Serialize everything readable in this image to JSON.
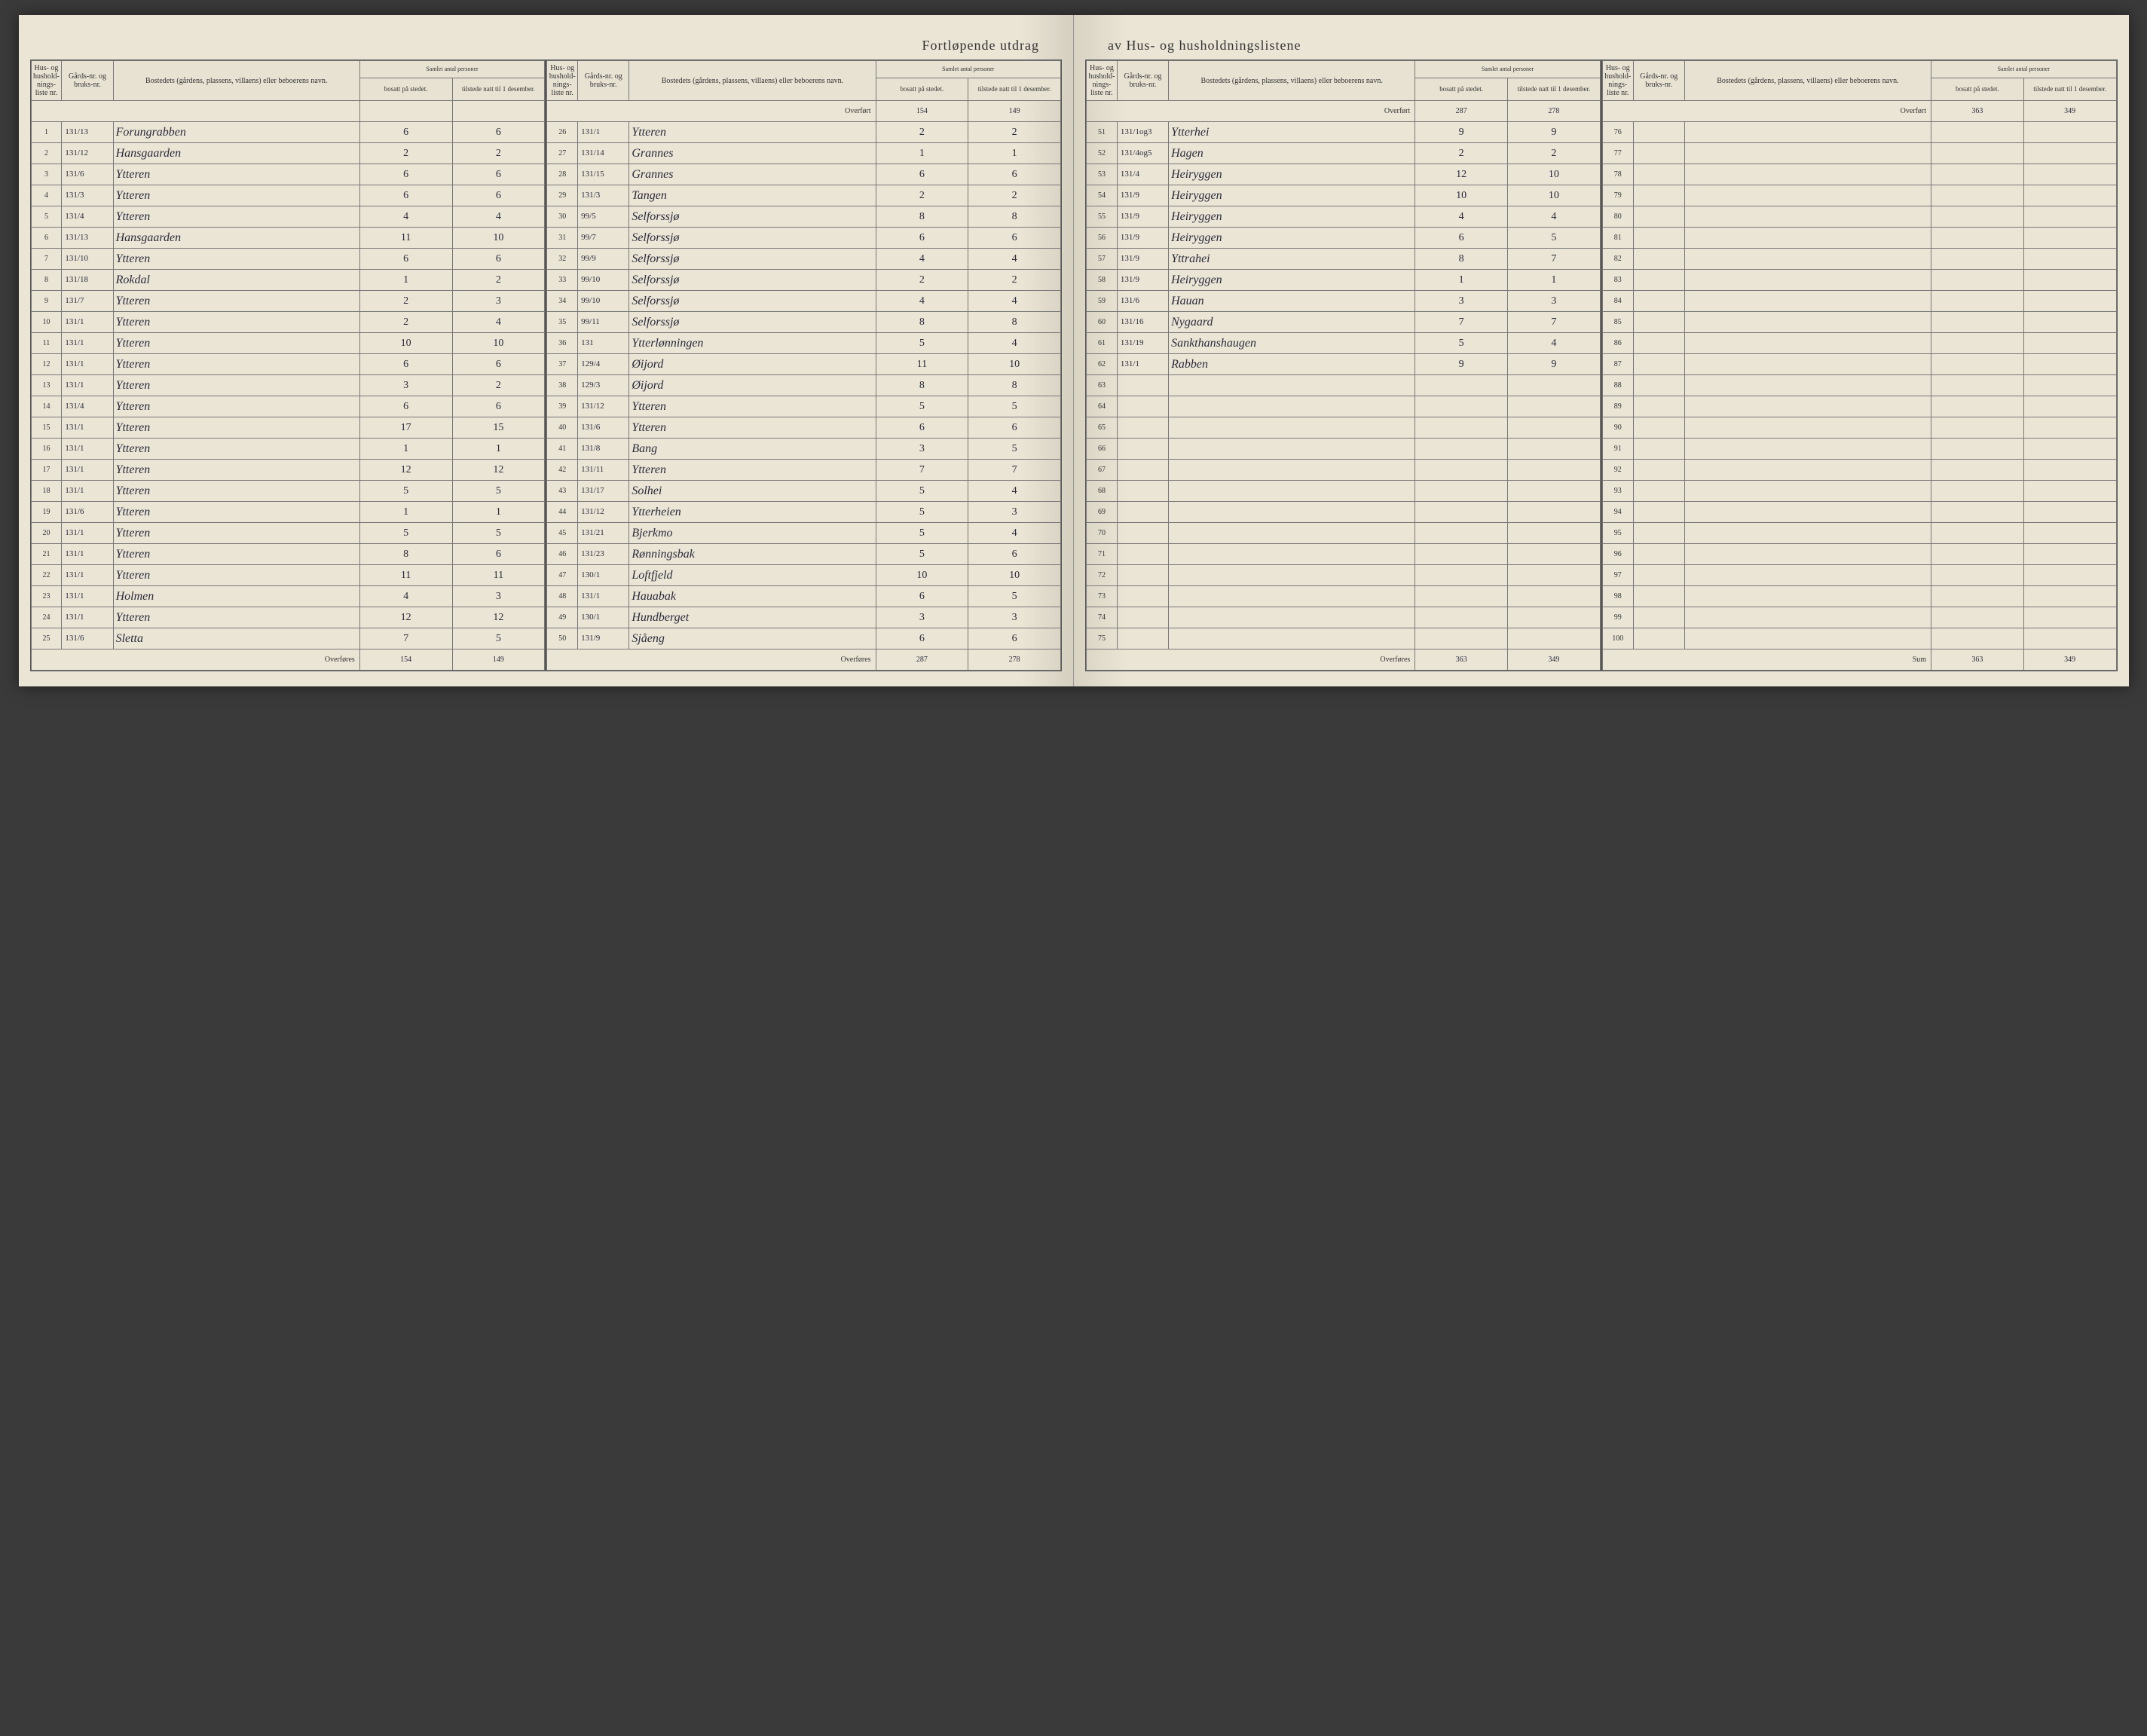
{
  "title_left": "Fortløpende utdrag",
  "title_right": "av Hus- og husholdningslistene",
  "headers": {
    "hus_nr": "Hus- og hushold-nings-liste nr.",
    "gard_nr": "Gårds-nr. og bruks-nr.",
    "bosted": "Bostedets (gårdens, plassens, villaens) eller beboerens navn.",
    "samlet": "Samlet antal personer",
    "bosatt": "bosatt på stedet.",
    "tilstede": "tilstede natt til 1 desember."
  },
  "overfort": "Overført",
  "overfores": "Overføres",
  "sum": "Sum",
  "block1": {
    "rows": [
      {
        "nr": "1",
        "gard": "131/13",
        "name": "Forungrabben",
        "b": "6",
        "t": "6"
      },
      {
        "nr": "2",
        "gard": "131/12",
        "name": "Hansgaarden",
        "b": "2",
        "t": "2"
      },
      {
        "nr": "3",
        "gard": "131/6",
        "name": "Ytteren",
        "b": "6",
        "t": "6"
      },
      {
        "nr": "4",
        "gard": "131/3",
        "name": "Ytteren",
        "b": "6",
        "t": "6"
      },
      {
        "nr": "5",
        "gard": "131/4",
        "name": "Ytteren",
        "b": "4",
        "t": "4"
      },
      {
        "nr": "6",
        "gard": "131/13",
        "name": "Hansgaarden",
        "b": "11",
        "t": "10"
      },
      {
        "nr": "7",
        "gard": "131/10",
        "name": "Ytteren",
        "b": "6",
        "t": "6"
      },
      {
        "nr": "8",
        "gard": "131/18",
        "name": "Rokdal",
        "b": "1",
        "t": "2"
      },
      {
        "nr": "9",
        "gard": "131/7",
        "name": "Ytteren",
        "b": "2",
        "t": "3"
      },
      {
        "nr": "10",
        "gard": "131/1",
        "name": "Ytteren",
        "b": "2",
        "t": "4"
      },
      {
        "nr": "11",
        "gard": "131/1",
        "name": "Ytteren",
        "b": "10",
        "t": "10"
      },
      {
        "nr": "12",
        "gard": "131/1",
        "name": "Ytteren",
        "b": "6",
        "t": "6"
      },
      {
        "nr": "13",
        "gard": "131/1",
        "name": "Ytteren",
        "b": "3",
        "t": "2"
      },
      {
        "nr": "14",
        "gard": "131/4",
        "name": "Ytteren",
        "b": "6",
        "t": "6"
      },
      {
        "nr": "15",
        "gard": "131/1",
        "name": "Ytteren",
        "b": "17",
        "t": "15"
      },
      {
        "nr": "16",
        "gard": "131/1",
        "name": "Ytteren",
        "b": "1",
        "t": "1"
      },
      {
        "nr": "17",
        "gard": "131/1",
        "name": "Ytteren",
        "b": "12",
        "t": "12"
      },
      {
        "nr": "18",
        "gard": "131/1",
        "name": "Ytteren",
        "b": "5",
        "t": "5"
      },
      {
        "nr": "19",
        "gard": "131/6",
        "name": "Ytteren",
        "b": "1",
        "t": "1"
      },
      {
        "nr": "20",
        "gard": "131/1",
        "name": "Ytteren",
        "b": "5",
        "t": "5"
      },
      {
        "nr": "21",
        "gard": "131/1",
        "name": "Ytteren",
        "b": "8",
        "t": "6"
      },
      {
        "nr": "22",
        "gard": "131/1",
        "name": "Ytteren",
        "b": "11",
        "t": "11"
      },
      {
        "nr": "23",
        "gard": "131/1",
        "name": "Holmen",
        "b": "4",
        "t": "3"
      },
      {
        "nr": "24",
        "gard": "131/1",
        "name": "Ytteren",
        "b": "12",
        "t": "12"
      },
      {
        "nr": "25",
        "gard": "131/6",
        "name": "Sletta",
        "b": "7",
        "t": "5"
      }
    ],
    "footer": {
      "b": "154",
      "t": "149"
    }
  },
  "block2": {
    "overfort": {
      "b": "154",
      "t": "149"
    },
    "rows": [
      {
        "nr": "26",
        "gard": "131/1",
        "name": "Ytteren",
        "b": "2",
        "t": "2"
      },
      {
        "nr": "27",
        "gard": "131/14",
        "name": "Grannes",
        "b": "1",
        "t": "1"
      },
      {
        "nr": "28",
        "gard": "131/15",
        "name": "Grannes",
        "b": "6",
        "t": "6"
      },
      {
        "nr": "29",
        "gard": "131/3",
        "name": "Tangen",
        "b": "2",
        "t": "2"
      },
      {
        "nr": "30",
        "gard": "99/5",
        "name": "Selforssjø",
        "b": "8",
        "t": "8"
      },
      {
        "nr": "31",
        "gard": "99/7",
        "name": "Selforssjø",
        "b": "6",
        "t": "6"
      },
      {
        "nr": "32",
        "gard": "99/9",
        "name": "Selforssjø",
        "b": "4",
        "t": "4"
      },
      {
        "nr": "33",
        "gard": "99/10",
        "name": "Selforssjø",
        "b": "2",
        "t": "2"
      },
      {
        "nr": "34",
        "gard": "99/10",
        "name": "Selforssjø",
        "b": "4",
        "t": "4"
      },
      {
        "nr": "35",
        "gard": "99/11",
        "name": "Selforssjø",
        "b": "8",
        "t": "8"
      },
      {
        "nr": "36",
        "gard": "131",
        "name": "Ytterlønningen",
        "b": "5",
        "t": "4"
      },
      {
        "nr": "37",
        "gard": "129/4",
        "name": "Øijord",
        "b": "11",
        "t": "10"
      },
      {
        "nr": "38",
        "gard": "129/3",
        "name": "Øijord",
        "b": "8",
        "t": "8"
      },
      {
        "nr": "39",
        "gard": "131/12",
        "name": "Ytteren",
        "b": "5",
        "t": "5"
      },
      {
        "nr": "40",
        "gard": "131/6",
        "name": "Ytteren",
        "b": "6",
        "t": "6"
      },
      {
        "nr": "41",
        "gard": "131/8",
        "name": "Bang",
        "b": "3",
        "t": "5"
      },
      {
        "nr": "42",
        "gard": "131/11",
        "name": "Ytteren",
        "b": "7",
        "t": "7"
      },
      {
        "nr": "43",
        "gard": "131/17",
        "name": "Solhei",
        "b": "5",
        "t": "4"
      },
      {
        "nr": "44",
        "gard": "131/12",
        "name": "Ytterheien",
        "b": "5",
        "t": "3"
      },
      {
        "nr": "45",
        "gard": "131/21",
        "name": "Bjerkmo",
        "b": "5",
        "t": "4"
      },
      {
        "nr": "46",
        "gard": "131/23",
        "name": "Rønningsbak",
        "b": "5",
        "t": "6"
      },
      {
        "nr": "47",
        "gard": "130/1",
        "name": "Loftfjeld",
        "b": "10",
        "t": "10"
      },
      {
        "nr": "48",
        "gard": "131/1",
        "name": "Hauabak",
        "b": "6",
        "t": "5"
      },
      {
        "nr": "49",
        "gard": "130/1",
        "name": "Hundberget",
        "b": "3",
        "t": "3"
      },
      {
        "nr": "50",
        "gard": "131/9",
        "name": "Sjåeng",
        "b": "6",
        "t": "6"
      }
    ],
    "footer": {
      "b": "287",
      "t": "278"
    }
  },
  "block3": {
    "overfort": {
      "b": "287",
      "t": "278"
    },
    "rows": [
      {
        "nr": "51",
        "gard": "131/1og3",
        "name": "Ytterhei",
        "b": "9",
        "t": "9"
      },
      {
        "nr": "52",
        "gard": "131/4og5",
        "name": "Hagen",
        "b": "2",
        "t": "2"
      },
      {
        "nr": "53",
        "gard": "131/4",
        "name": "Heiryggen",
        "b": "12",
        "t": "10"
      },
      {
        "nr": "54",
        "gard": "131/9",
        "name": "Heiryggen",
        "b": "10",
        "t": "10"
      },
      {
        "nr": "55",
        "gard": "131/9",
        "name": "Heiryggen",
        "b": "4",
        "t": "4"
      },
      {
        "nr": "56",
        "gard": "131/9",
        "name": "Heiryggen",
        "b": "6",
        "t": "5"
      },
      {
        "nr": "57",
        "gard": "131/9",
        "name": "Yttrahei",
        "b": "8",
        "t": "7"
      },
      {
        "nr": "58",
        "gard": "131/9",
        "name": "Heiryggen",
        "b": "1",
        "t": "1"
      },
      {
        "nr": "59",
        "gard": "131/6",
        "name": "Hauan",
        "b": "3",
        "t": "3"
      },
      {
        "nr": "60",
        "gard": "131/16",
        "name": "Nygaard",
        "b": "7",
        "t": "7"
      },
      {
        "nr": "61",
        "gard": "131/19",
        "name": "Sankthanshaugen",
        "b": "5",
        "t": "4"
      },
      {
        "nr": "62",
        "gard": "131/1",
        "name": "Rabben",
        "b": "9",
        "t": "9"
      },
      {
        "nr": "63",
        "gard": "",
        "name": "",
        "b": "",
        "t": ""
      },
      {
        "nr": "64",
        "gard": "",
        "name": "",
        "b": "",
        "t": ""
      },
      {
        "nr": "65",
        "gard": "",
        "name": "",
        "b": "",
        "t": ""
      },
      {
        "nr": "66",
        "gard": "",
        "name": "",
        "b": "",
        "t": ""
      },
      {
        "nr": "67",
        "gard": "",
        "name": "",
        "b": "",
        "t": ""
      },
      {
        "nr": "68",
        "gard": "",
        "name": "",
        "b": "",
        "t": ""
      },
      {
        "nr": "69",
        "gard": "",
        "name": "",
        "b": "",
        "t": ""
      },
      {
        "nr": "70",
        "gard": "",
        "name": "",
        "b": "",
        "t": ""
      },
      {
        "nr": "71",
        "gard": "",
        "name": "",
        "b": "",
        "t": ""
      },
      {
        "nr": "72",
        "gard": "",
        "name": "",
        "b": "",
        "t": ""
      },
      {
        "nr": "73",
        "gard": "",
        "name": "",
        "b": "",
        "t": ""
      },
      {
        "nr": "74",
        "gard": "",
        "name": "",
        "b": "",
        "t": ""
      },
      {
        "nr": "75",
        "gard": "",
        "name": "",
        "b": "",
        "t": ""
      }
    ],
    "footer": {
      "b": "363",
      "t": "349"
    }
  },
  "block4": {
    "overfort": {
      "b": "363",
      "t": "349"
    },
    "rows": [
      {
        "nr": "76",
        "gard": "",
        "name": "",
        "b": "",
        "t": ""
      },
      {
        "nr": "77",
        "gard": "",
        "name": "",
        "b": "",
        "t": ""
      },
      {
        "nr": "78",
        "gard": "",
        "name": "",
        "b": "",
        "t": ""
      },
      {
        "nr": "79",
        "gard": "",
        "name": "",
        "b": "",
        "t": ""
      },
      {
        "nr": "80",
        "gard": "",
        "name": "",
        "b": "",
        "t": ""
      },
      {
        "nr": "81",
        "gard": "",
        "name": "",
        "b": "",
        "t": ""
      },
      {
        "nr": "82",
        "gard": "",
        "name": "",
        "b": "",
        "t": ""
      },
      {
        "nr": "83",
        "gard": "",
        "name": "",
        "b": "",
        "t": ""
      },
      {
        "nr": "84",
        "gard": "",
        "name": "",
        "b": "",
        "t": ""
      },
      {
        "nr": "85",
        "gard": "",
        "name": "",
        "b": "",
        "t": ""
      },
      {
        "nr": "86",
        "gard": "",
        "name": "",
        "b": "",
        "t": ""
      },
      {
        "nr": "87",
        "gard": "",
        "name": "",
        "b": "",
        "t": ""
      },
      {
        "nr": "88",
        "gard": "",
        "name": "",
        "b": "",
        "t": ""
      },
      {
        "nr": "89",
        "gard": "",
        "name": "",
        "b": "",
        "t": ""
      },
      {
        "nr": "90",
        "gard": "",
        "name": "",
        "b": "",
        "t": ""
      },
      {
        "nr": "91",
        "gard": "",
        "name": "",
        "b": "",
        "t": ""
      },
      {
        "nr": "92",
        "gard": "",
        "name": "",
        "b": "",
        "t": ""
      },
      {
        "nr": "93",
        "gard": "",
        "name": "",
        "b": "",
        "t": ""
      },
      {
        "nr": "94",
        "gard": "",
        "name": "",
        "b": "",
        "t": ""
      },
      {
        "nr": "95",
        "gard": "",
        "name": "",
        "b": "",
        "t": ""
      },
      {
        "nr": "96",
        "gard": "",
        "name": "",
        "b": "",
        "t": ""
      },
      {
        "nr": "97",
        "gard": "",
        "name": "",
        "b": "",
        "t": ""
      },
      {
        "nr": "98",
        "gard": "",
        "name": "",
        "b": "",
        "t": ""
      },
      {
        "nr": "99",
        "gard": "",
        "name": "",
        "b": "",
        "t": ""
      },
      {
        "nr": "100",
        "gard": "",
        "name": "",
        "b": "",
        "t": ""
      }
    ],
    "footer": {
      "b": "363",
      "t": "349"
    }
  }
}
